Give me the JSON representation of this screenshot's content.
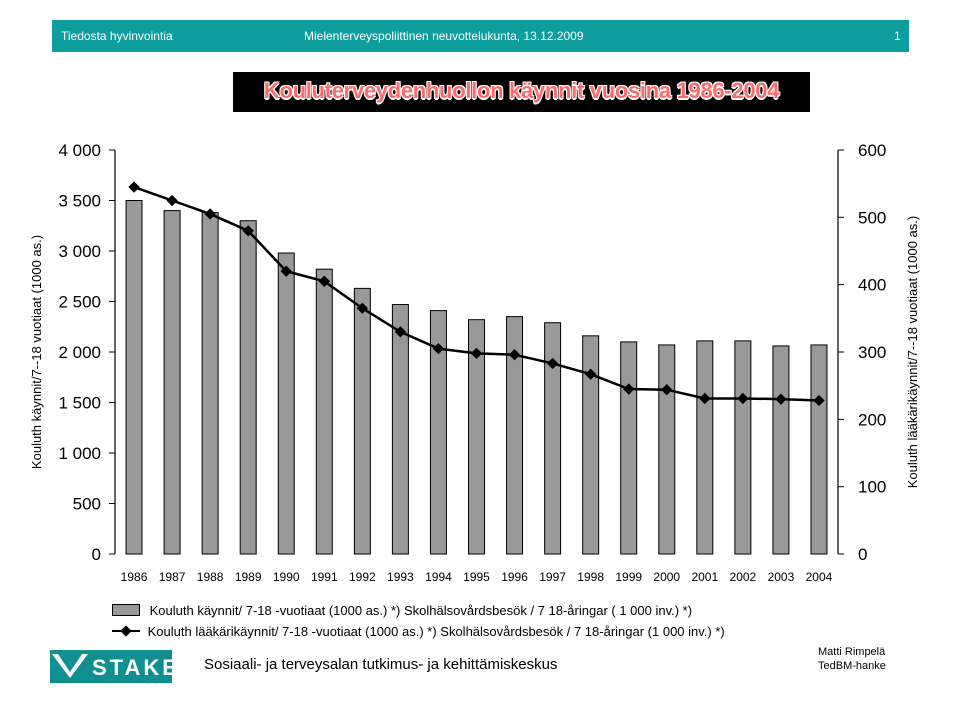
{
  "header": {
    "left": "Tiedosta hyvinvointia",
    "center": "Mielenterveyspoliittinen neuvottelukunta, 13.12.2009",
    "page_number": "1"
  },
  "legend": {
    "bars": "Kouluth käynnit/ 7-18 -vuotiaat (1000 as.) *) Skolhälsovårdsbesök / 7 18-åringar ( 1 000 inv.) *)",
    "line": "Kouluth lääkärikäynnit/ 7-18 -vuotiaat (1000 as.) *) Skolhälsovårdsbesök / 7 18-åringar (1 000 inv.) *)"
  },
  "footer": {
    "logo_text": "STAKES",
    "organization": "Sosiaali- ja terveysalan tutkimus- ja kehittämiskeskus",
    "author_line1": "Matti Rimpelä",
    "author_line2": "TedBM-hanke"
  },
  "colors": {
    "header_bar": "#0f9e9e",
    "bar_fill": "#999999",
    "line": "#000000",
    "title_text": "#ff6b6b"
  },
  "chart_data": {
    "type": "bar",
    "title": "Kouluterveydenhuollon käynnit vuosina 1986-2004",
    "categories": [
      "1986",
      "1987",
      "1988",
      "1989",
      "1990",
      "1991",
      "1992",
      "1993",
      "1994",
      "1995",
      "1996",
      "1997",
      "1998",
      "1999",
      "2000",
      "2001",
      "2002",
      "2003",
      "2004"
    ],
    "ylabel": "Kouluth käynnit/7--18 vuotiaat (1000 as.)",
    "y2label": "Kouluth lääkärikäynnit/7--18 vuotiaat (1000 as.)",
    "ylim": [
      0,
      4000
    ],
    "y2lim": [
      0,
      600
    ],
    "yticks": [
      "0",
      "500",
      "1 000",
      "1 500",
      "2 000",
      "2 500",
      "3 000",
      "3 500",
      "4 000"
    ],
    "y2ticks": [
      "0",
      "100",
      "200",
      "300",
      "400",
      "500",
      "600"
    ],
    "series": [
      {
        "name": "Kouluth käynnit/ 7-18 -vuotiaat (1000 as.) *) Skolhälsovårdsbesök / 7 18-åringar ( 1 000 inv.) *)",
        "type": "bar",
        "axis": "left",
        "values": [
          3500,
          3400,
          3380,
          3300,
          2980,
          2820,
          2630,
          2470,
          2410,
          2320,
          2350,
          2290,
          2160,
          2100,
          2070,
          2110,
          2110,
          2060,
          2070
        ]
      },
      {
        "name": "Kouluth lääkärikäynnit/ 7-18 -vuotiaat (1000 as.) *) Skolhälsovårdsbesök / 7 18-åringar (1 000 inv.) *)",
        "type": "line",
        "axis": "right",
        "values": [
          545,
          525,
          505,
          480,
          420,
          405,
          365,
          330,
          305,
          298,
          296,
          283,
          267,
          245,
          244,
          231,
          231,
          230,
          228
        ]
      }
    ],
    "grid": false,
    "legend_position": "bottom"
  }
}
